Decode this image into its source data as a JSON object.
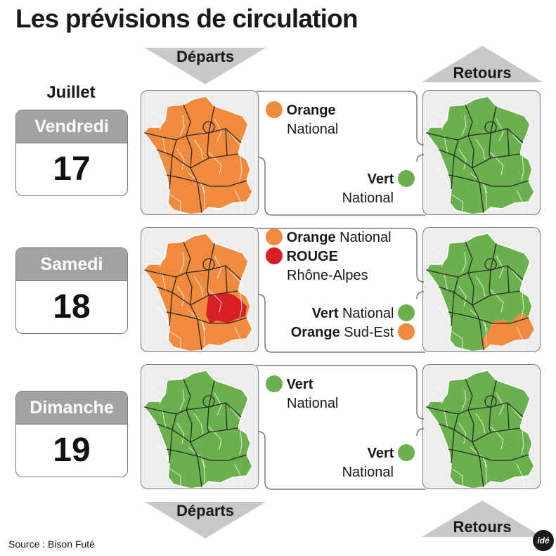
{
  "title": "Les prévisions de circulation",
  "labels": {
    "departs": "Départs",
    "retours": "Retours",
    "month": "Juillet"
  },
  "colors": {
    "orange": "#f08a3c",
    "vert": "#6ab04c",
    "rouge": "#d71f26",
    "gray": "#a3a3a3"
  },
  "days": [
    {
      "name": "Vendredi",
      "number": "17",
      "departs": {
        "lines": [
          {
            "bold": "Orange",
            "text": "",
            "dot": "orange"
          },
          {
            "bold": "",
            "text": "National",
            "dot": ""
          }
        ]
      },
      "retours": {
        "lines": [
          {
            "bold": "Vert",
            "text": "",
            "dot": "vert"
          },
          {
            "bold": "",
            "text": "National",
            "dot": ""
          }
        ]
      }
    },
    {
      "name": "Samedi",
      "number": "18",
      "departs": {
        "lines": [
          {
            "bold": "Orange",
            "text": " National",
            "dot": "orange"
          },
          {
            "bold": "ROUGE",
            "text": "",
            "dot": "rouge"
          },
          {
            "bold": "",
            "text": "Rhône-Alpes",
            "dot": ""
          }
        ]
      },
      "retours": {
        "lines": [
          {
            "bold": "Vert",
            "text": " National",
            "dot": "vert"
          },
          {
            "bold": "Orange",
            "text": " Sud-Est",
            "dot": "orange"
          }
        ]
      }
    },
    {
      "name": "Dimanche",
      "number": "19",
      "departs": {
        "lines": [
          {
            "bold": "Vert",
            "text": "",
            "dot": "vert"
          },
          {
            "bold": "",
            "text": "National",
            "dot": ""
          }
        ]
      },
      "retours": {
        "lines": [
          {
            "bold": "Vert",
            "text": "",
            "dot": "vert"
          },
          {
            "bold": "",
            "text": "National",
            "dot": ""
          }
        ]
      }
    }
  ],
  "source": "Source : Bison Futé",
  "logo": "idé"
}
